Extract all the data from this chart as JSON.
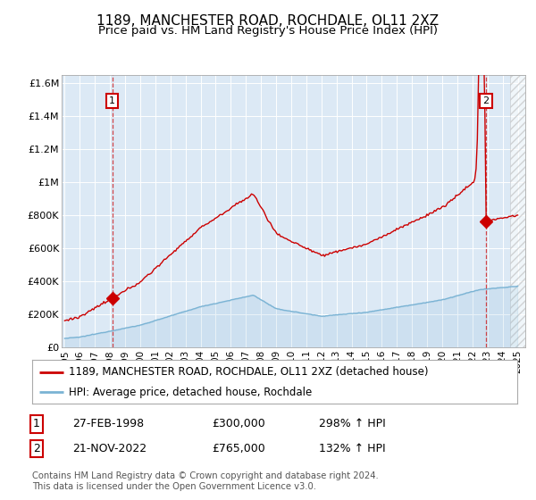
{
  "title": "1189, MANCHESTER ROAD, ROCHDALE, OL11 2XZ",
  "subtitle": "Price paid vs. HM Land Registry's House Price Index (HPI)",
  "background_color": "#ffffff",
  "plot_bg_color": "#dce9f5",
  "grid_color": "#ffffff",
  "red_line_color": "#cc0000",
  "blue_line_color": "#7ab3d4",
  "marker_color": "#cc0000",
  "dashed_line_color": "#cc0000",
  "sale1_date": "27-FEB-1998",
  "sale1_price": 300000,
  "sale1_hpi": "298% ↑ HPI",
  "sale1_year": 1998.15,
  "sale2_date": "21-NOV-2022",
  "sale2_price": 765000,
  "sale2_hpi": "132% ↑ HPI",
  "sale2_year": 2022.89,
  "ylim": [
    0,
    1650000
  ],
  "xlim_start": 1994.8,
  "xlim_end": 2025.5,
  "ylabel_ticks": [
    0,
    200000,
    400000,
    600000,
    800000,
    1000000,
    1200000,
    1400000,
    1600000
  ],
  "ylabel_labels": [
    "£0",
    "£200K",
    "£400K",
    "£600K",
    "£800K",
    "£1M",
    "£1.2M",
    "£1.4M",
    "£1.6M"
  ],
  "legend_line1": "1189, MANCHESTER ROAD, ROCHDALE, OL11 2XZ (detached house)",
  "legend_line2": "HPI: Average price, detached house, Rochdale",
  "footer": "Contains HM Land Registry data © Crown copyright and database right 2024.\nThis data is licensed under the Open Government Licence v3.0.",
  "title_fontsize": 11,
  "subtitle_fontsize": 9.5,
  "tick_fontsize": 8,
  "legend_fontsize": 8.5,
  "hatch_start": 2024.5
}
